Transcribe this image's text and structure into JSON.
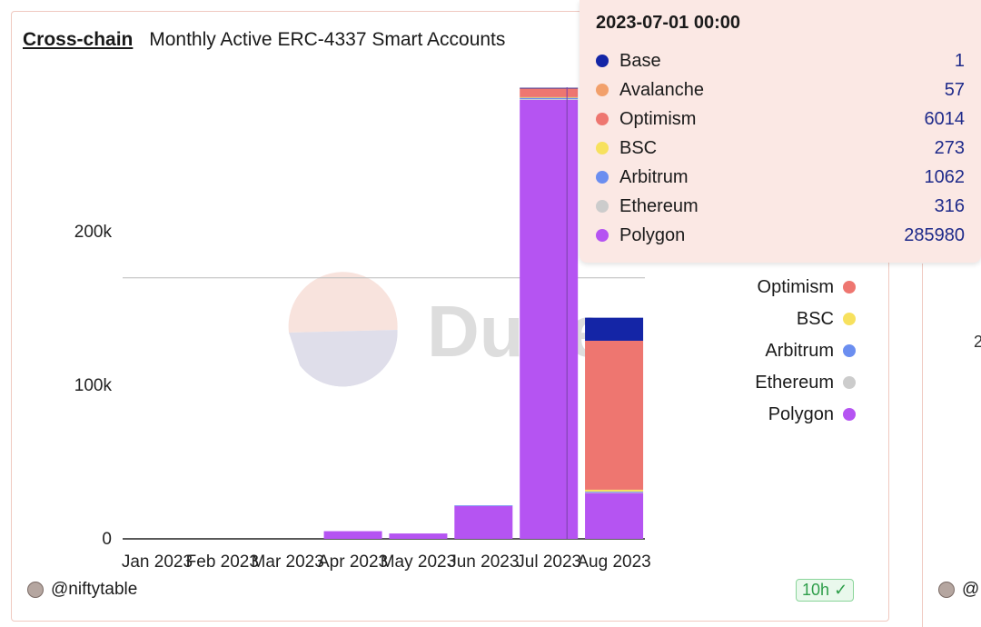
{
  "header": {
    "link": "Cross-chain",
    "title": "Monthly Active ERC-4337 Smart Accounts"
  },
  "watermark": "Dune",
  "footer": {
    "author": "@niftytable",
    "age_badge": "10h",
    "author2": "@"
  },
  "edge_text": "2",
  "tooltip": {
    "title": "2023-07-01 00:00",
    "rows": [
      {
        "name": "Base",
        "value": "1",
        "color": "#1425a6"
      },
      {
        "name": "Avalanche",
        "value": "57",
        "color": "#f2a06b"
      },
      {
        "name": "Optimism",
        "value": "6014",
        "color": "#ee7670"
      },
      {
        "name": "BSC",
        "value": "273",
        "color": "#f7e15e"
      },
      {
        "name": "Arbitrum",
        "value": "1062",
        "color": "#6b8ef0"
      },
      {
        "name": "Ethereum",
        "value": "316",
        "color": "#cccccc"
      },
      {
        "name": "Polygon",
        "value": "285980",
        "color": "#b554f2"
      }
    ]
  },
  "legend": [
    {
      "name": "Optimism",
      "color": "#ee7670"
    },
    {
      "name": "BSC",
      "color": "#f7e15e"
    },
    {
      "name": "Arbitrum",
      "color": "#6b8ef0"
    },
    {
      "name": "Ethereum",
      "color": "#cccccc"
    },
    {
      "name": "Polygon",
      "color": "#b554f2"
    }
  ],
  "chart_data": {
    "type": "bar",
    "stacked": true,
    "title": "Monthly Active ERC-4337 Smart Accounts",
    "categories": [
      "Jan 2023",
      "Feb 2023",
      "Mar 2023",
      "Apr 2023",
      "May 2023",
      "Jun 2023",
      "Jul 2023",
      "Aug 2023"
    ],
    "ylim": [
      0,
      300000
    ],
    "y_ticks": [
      {
        "value": 0,
        "label": "0"
      },
      {
        "value": 100000,
        "label": "100k"
      },
      {
        "value": 200000,
        "label": "200k"
      }
    ],
    "reference_line": 170000,
    "series": [
      {
        "name": "Polygon",
        "color": "#b554f2",
        "values": [
          0,
          0,
          0,
          5000,
          3500,
          21500,
          285980,
          30000
        ]
      },
      {
        "name": "Ethereum",
        "color": "#cccccc",
        "values": [
          0,
          0,
          0,
          0,
          0,
          0,
          316,
          300
        ]
      },
      {
        "name": "Arbitrum",
        "color": "#6b8ef0",
        "values": [
          0,
          0,
          0,
          0,
          0,
          300,
          1062,
          500
        ]
      },
      {
        "name": "BSC",
        "color": "#f7e15e",
        "values": [
          0,
          0,
          0,
          0,
          0,
          0,
          273,
          1200
        ]
      },
      {
        "name": "Optimism",
        "color": "#ee7670",
        "values": [
          0,
          0,
          0,
          0,
          0,
          0,
          6014,
          97000
        ]
      },
      {
        "name": "Avalanche",
        "color": "#f2a06b",
        "values": [
          0,
          0,
          0,
          0,
          0,
          0,
          57,
          0
        ]
      },
      {
        "name": "Base",
        "color": "#1425a6",
        "values": [
          0,
          0,
          0,
          0,
          0,
          0,
          1,
          15000
        ]
      }
    ]
  }
}
